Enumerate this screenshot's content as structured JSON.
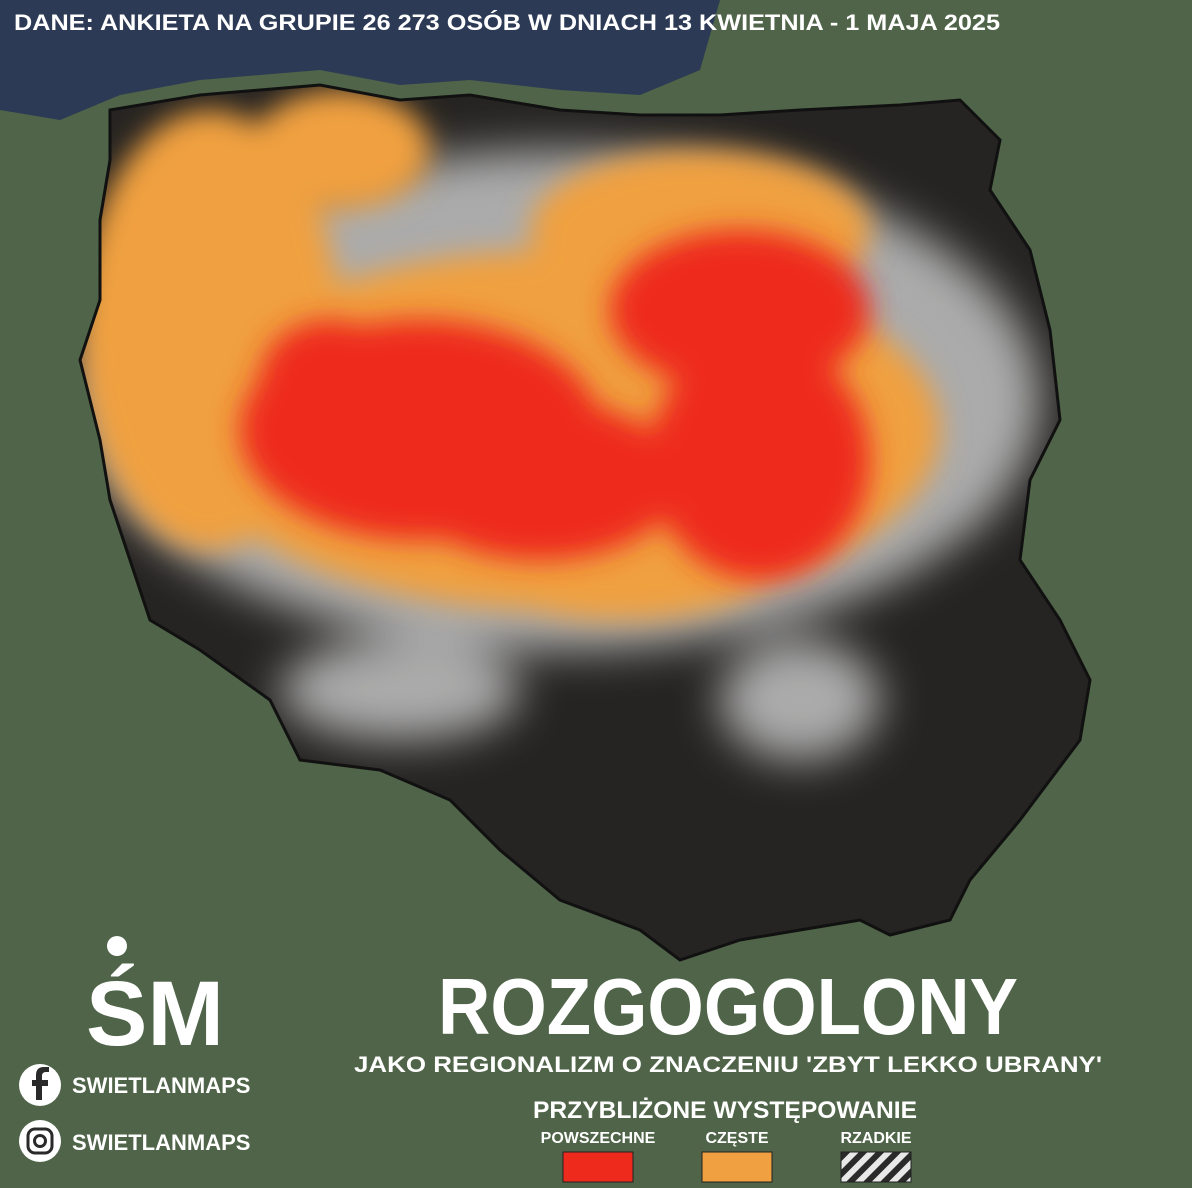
{
  "header": {
    "source": "DANE: ANKIETA NA GRUPIE 26 273 OSÓB W DNIACH 13 KWIETNIA - 1 MAJA 2025"
  },
  "logo": "ŚM",
  "social": [
    "SWIETLANMAPS",
    "SWIETLANMAPS"
  ],
  "title": "ROZGOGOLONY",
  "subtitle": "JAKO REGIONALIZM O ZNACZENIU 'ZBYT LEKKO UBRANY'",
  "legend": {
    "title": "PRZYBLIŻONE WYSTĘPOWANIE",
    "items": [
      "POWSZECHNE",
      "CZĘSTE",
      "RZADKIE"
    ]
  }
}
